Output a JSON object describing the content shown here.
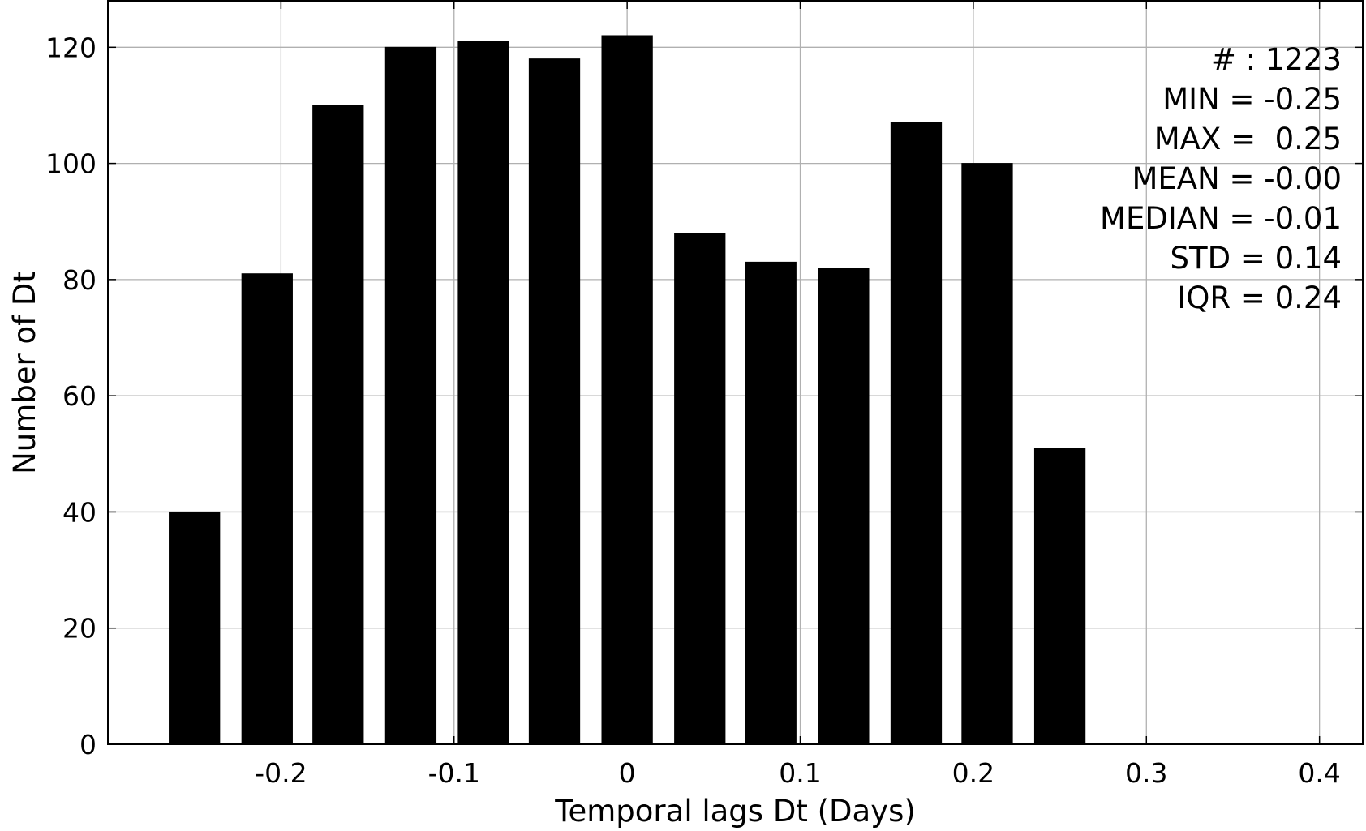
{
  "chart_data": {
    "type": "bar",
    "title": "",
    "xlabel": "Temporal lags Dt (Days)",
    "ylabel": "Number of Dt",
    "bin_width": 0.0417,
    "x": [
      -0.25,
      -0.208,
      -0.167,
      -0.125,
      -0.083,
      -0.042,
      0.0,
      0.042,
      0.083,
      0.125,
      0.167,
      0.208,
      0.25
    ],
    "values": [
      40,
      81,
      110,
      120,
      121,
      118,
      122,
      88,
      83,
      82,
      107,
      100,
      51
    ],
    "xlim": [
      -0.3,
      0.425
    ],
    "ylim": [
      0,
      128
    ],
    "xticks": [
      -0.2,
      -0.1,
      0,
      0.1,
      0.2,
      0.3,
      0.4
    ],
    "xtick_labels": [
      "-0.2",
      "-0.1",
      "0",
      "0.1",
      "0.2",
      "0.3",
      "0.4"
    ],
    "yticks": [
      0,
      20,
      40,
      60,
      80,
      100,
      120
    ],
    "ytick_labels": [
      "0",
      "20",
      "40",
      "60",
      "80",
      "100",
      "120"
    ],
    "grid": true,
    "bar_color": "#000000",
    "grid_color": "#b0b0b0",
    "stats": [
      "# : 1223",
      "MIN = -0.25",
      "MAX =  0.25",
      "MEAN = -0.00",
      "MEDIAN = -0.01",
      "STD = 0.14",
      "IQR = 0.24"
    ]
  }
}
